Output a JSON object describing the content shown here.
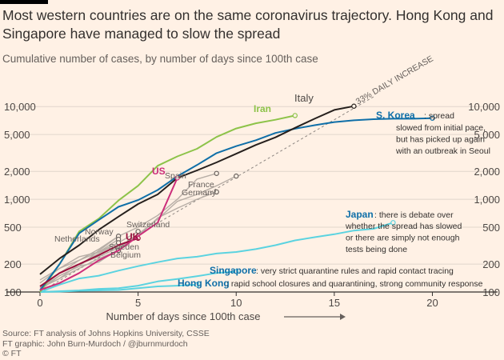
{
  "title": "Most western countries are on the same coronavirus trajectory. Hong Kong and Singapore have managed to slow the spread",
  "subtitle": "Cumulative number of cases, by number of days since 100th case",
  "source_lines": [
    "Source: FT analysis of Johns Hopkins University, CSSE",
    "FT graphic: John Burn-Murdoch / @jburnmurdoch",
    "© FT"
  ],
  "chart_data": {
    "type": "line",
    "title": "Most western countries are on the same coronavirus trajectory. Hong Kong and Singapore have managed to slow the spread",
    "subtitle": "Cumulative number of cases, by number of days since 100th case",
    "xlabel": "Number of days since 100th case",
    "ylabel": "",
    "x_scale": "linear",
    "y_scale": "log",
    "xlim": [
      0,
      21
    ],
    "ylim": [
      100,
      13000
    ],
    "x_ticks": [
      0,
      5,
      10,
      15,
      20
    ],
    "y_ticks": [
      {
        "v": 100,
        "label": "100"
      },
      {
        "v": 200,
        "label": "200"
      },
      {
        "v": 500,
        "label": "500"
      },
      {
        "v": 1000,
        "label": "1,000"
      },
      {
        "v": 2000,
        "label": "2,000"
      },
      {
        "v": 5000,
        "label": "5,000"
      },
      {
        "v": 10000,
        "label": "10,000"
      }
    ],
    "grid": true,
    "reference_line": {
      "label": "33% DAILY INCREASE",
      "start": [
        0,
        100
      ],
      "rate": 1.33
    },
    "series": [
      {
        "name": "Iran",
        "color": "#8dc349",
        "label_color": "#8dc349",
        "x": [
          0,
          1,
          2,
          3,
          4,
          5,
          6,
          7,
          8,
          9,
          10,
          11,
          12,
          13
        ],
        "y": [
          100,
          200,
          450,
          620,
          970,
          1400,
          2300,
          2900,
          3500,
          4700,
          5800,
          6600,
          7200,
          8000
        ]
      },
      {
        "name": "Italy",
        "color": "#26201d",
        "label_color": "#33302e",
        "x": [
          0,
          1,
          2,
          3,
          4,
          5,
          6,
          7,
          8,
          9,
          10,
          11,
          12,
          13,
          14,
          15,
          16
        ],
        "y": [
          155,
          230,
          320,
          470,
          650,
          890,
          1130,
          1700,
          2050,
          2500,
          3100,
          3850,
          4650,
          5900,
          7400,
          9200,
          10100
        ]
      },
      {
        "name": "S. Korea",
        "color": "#0f6fa8",
        "label_color": "#0f6fa8",
        "x": [
          0,
          1,
          2,
          3,
          4,
          5,
          6,
          7,
          8,
          9,
          10,
          11,
          12,
          13,
          14,
          15,
          16,
          17,
          18,
          19,
          20
        ],
        "y": [
          104,
          200,
          430,
          600,
          830,
          980,
          1260,
          1770,
          2340,
          3150,
          3740,
          4330,
          5190,
          5770,
          6300,
          6800,
          7100,
          7300,
          7400,
          7400,
          7500
        ]
      },
      {
        "name": "US",
        "color": "#cc2e7a",
        "label_color": "#cc2e7a",
        "x": [
          0,
          1,
          2,
          3,
          4,
          5,
          6,
          7
        ],
        "y": [
          105,
          125,
          160,
          220,
          280,
          400,
          560,
          1700
        ]
      },
      {
        "name": "Spain",
        "color": "#b7aea6",
        "label_color": "#66605c",
        "x": [
          0,
          1,
          2,
          3,
          4,
          5,
          6,
          7,
          8,
          9
        ],
        "y": [
          115,
          160,
          220,
          290,
          400,
          500,
          670,
          1000,
          1650,
          1900
        ]
      },
      {
        "name": "France",
        "color": "#b7aea6",
        "label_color": "#66605c",
        "x": [
          0,
          1,
          2,
          3,
          4,
          5,
          6,
          7,
          8,
          9,
          10
        ],
        "y": [
          105,
          150,
          190,
          210,
          290,
          420,
          610,
          950,
          1130,
          1400,
          1780
        ]
      },
      {
        "name": "Germany",
        "color": "#b7aea6",
        "label_color": "#66605c",
        "x": [
          0,
          1,
          2,
          3,
          4,
          5,
          6,
          7,
          8,
          9
        ],
        "y": [
          110,
          160,
          200,
          240,
          300,
          400,
          630,
          800,
          1000,
          1200
        ]
      },
      {
        "name": "Switzerland",
        "color": "#b7aea6",
        "label_color": "#66605c",
        "x": [
          0,
          1,
          2,
          3,
          4,
          5
        ],
        "y": [
          110,
          140,
          200,
          260,
          340,
          450
        ]
      },
      {
        "name": "Norway",
        "color": "#b7aea6",
        "label_color": "#66605c",
        "x": [
          0,
          1,
          2,
          3,
          4
        ],
        "y": [
          110,
          150,
          190,
          280,
          400
        ]
      },
      {
        "name": "Netherlands",
        "color": "#b7aea6",
        "label_color": "#66605c",
        "x": [
          0,
          1,
          2,
          3,
          4
        ],
        "y": [
          125,
          180,
          240,
          270,
          370
        ]
      },
      {
        "name": "Sweden",
        "color": "#b7aea6",
        "label_color": "#66605c",
        "x": [
          0,
          1,
          2,
          3,
          4
        ],
        "y": [
          135,
          180,
          220,
          270,
          340
        ]
      },
      {
        "name": "Belgium",
        "color": "#b7aea6",
        "label_color": "#66605c",
        "x": [
          0,
          1,
          2,
          3,
          4
        ],
        "y": [
          110,
          140,
          180,
          230,
          280
        ]
      },
      {
        "name": "UK",
        "color": "#990f3d",
        "label_color": "#990f3d",
        "x": [
          0,
          1,
          2,
          3,
          4,
          5
        ],
        "y": [
          115,
          160,
          200,
          250,
          320,
          380
        ]
      },
      {
        "name": "Japan",
        "color": "#5bd3e0",
        "label_color": "#0f6fa8",
        "x": [
          0,
          1,
          2,
          3,
          4,
          5,
          6,
          7,
          8,
          9,
          10,
          11,
          12,
          13,
          14,
          15,
          16,
          17,
          18
        ],
        "y": [
          100,
          120,
          140,
          150,
          170,
          190,
          210,
          230,
          240,
          260,
          270,
          290,
          320,
          360,
          390,
          420,
          460,
          480,
          560
        ]
      },
      {
        "name": "Singapore",
        "color": "#5bd3e0",
        "label_color": "#0f6fa8",
        "x": [
          0,
          1,
          2,
          3,
          4,
          5,
          6,
          7,
          8,
          9,
          10
        ],
        "y": [
          100,
          102,
          104,
          108,
          110,
          117,
          130,
          138,
          148,
          160,
          166
        ]
      },
      {
        "name": "Hong Kong",
        "color": "#5bd3e0",
        "label_color": "#0f6fa8",
        "x": [
          0,
          1,
          2,
          3,
          4,
          5,
          6,
          7,
          8
        ],
        "y": [
          100,
          101,
          103,
          104,
          105,
          110,
          115,
          117,
          120
        ]
      }
    ],
    "annotations": {
      "S. Korea": [
        "spread",
        "slowed from initial pace,",
        "but has picked up again",
        "with an outbreak in Seoul"
      ],
      "Japan": [
        "there is debate over",
        "whether the spread has slowed",
        "or there are simply not enough",
        "tests being done"
      ],
      "Singapore": [
        "very strict quarantine rules and rapid contact tracing"
      ],
      "Hong Kong": [
        "rapid school closures and quarantining, strong community response"
      ]
    }
  }
}
